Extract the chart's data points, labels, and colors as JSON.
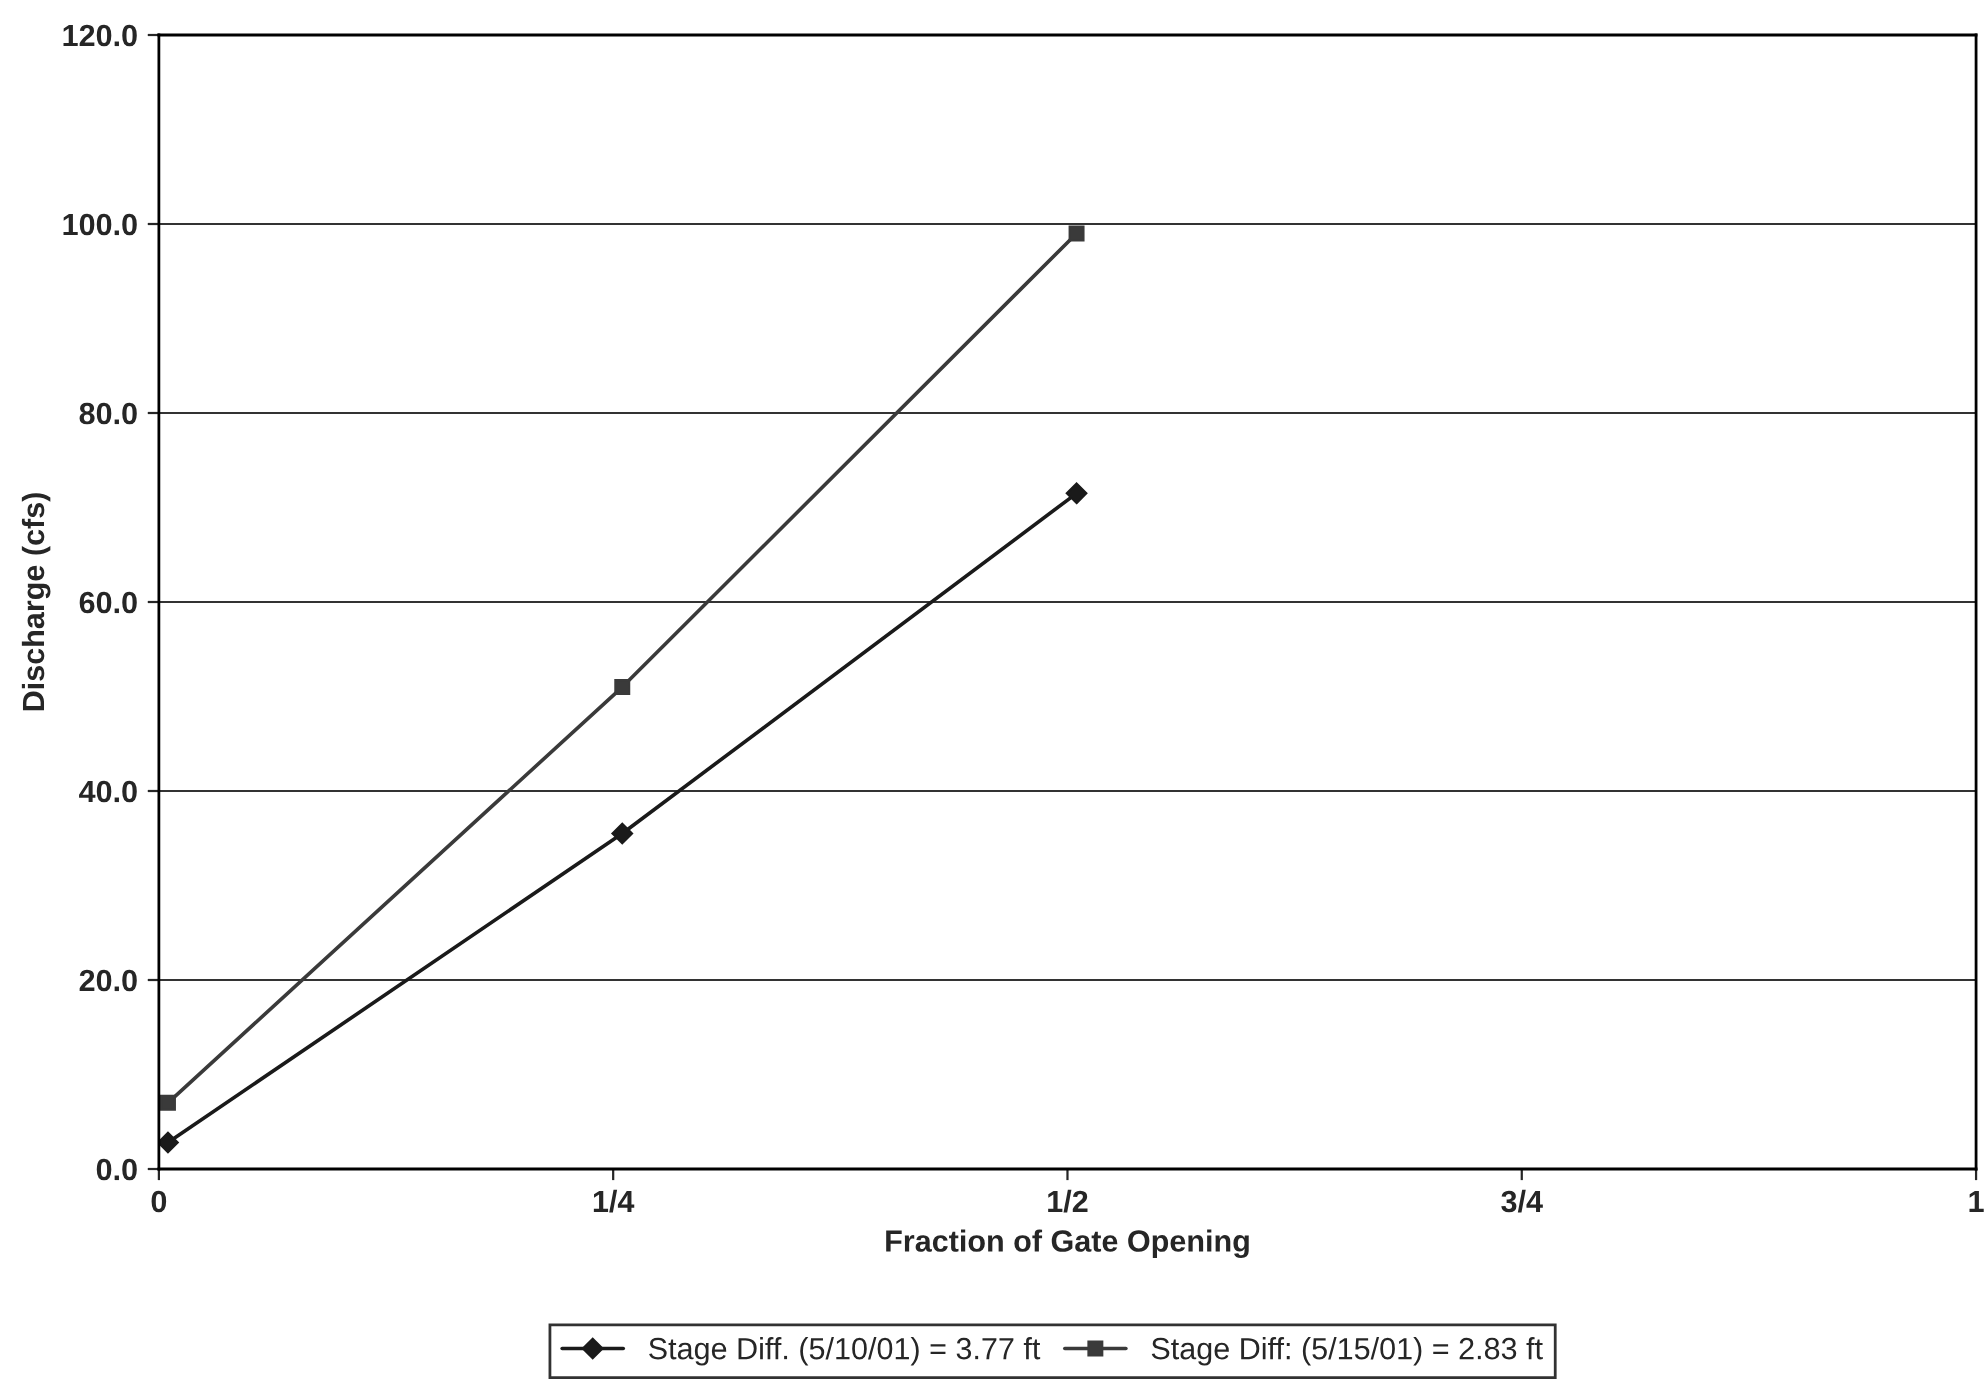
{
  "chart_data": {
    "type": "line",
    "xlabel": "Fraction of Gate Opening",
    "ylabel": "Discharge (cfs)",
    "x": [
      0.005,
      0.255,
      0.505
    ],
    "series": [
      {
        "name": "Stage Diff. (5/10/01) = 3.77 ft",
        "color": "#1a1a1a",
        "values": [
          2.8,
          35.5,
          71.5
        ],
        "marker": "diamond"
      },
      {
        "name": "Stage Diff: (5/15/01) = 2.83 ft",
        "color": "#3a3a3a",
        "values": [
          7.0,
          51.0,
          99.0
        ],
        "marker": "square"
      }
    ],
    "xlim": [
      0,
      1
    ],
    "xticks": [
      {
        "value": 0,
        "label": "0"
      },
      {
        "value": 0.25,
        "label": "1/4"
      },
      {
        "value": 0.5,
        "label": "1/2"
      },
      {
        "value": 0.75,
        "label": "3/4"
      },
      {
        "value": 1,
        "label": "1"
      }
    ],
    "ylim": [
      0,
      120
    ],
    "yticks": [
      {
        "value": 0,
        "label": "0.0"
      },
      {
        "value": 20,
        "label": "20.0"
      },
      {
        "value": 40,
        "label": "40.0"
      },
      {
        "value": 60,
        "label": "60.0"
      },
      {
        "value": 80,
        "label": "80.0"
      },
      {
        "value": 100,
        "label": "100.0"
      },
      {
        "value": 120,
        "label": "120.0"
      }
    ],
    "grid": "y",
    "legend": "bottom",
    "line_style": "solid"
  }
}
